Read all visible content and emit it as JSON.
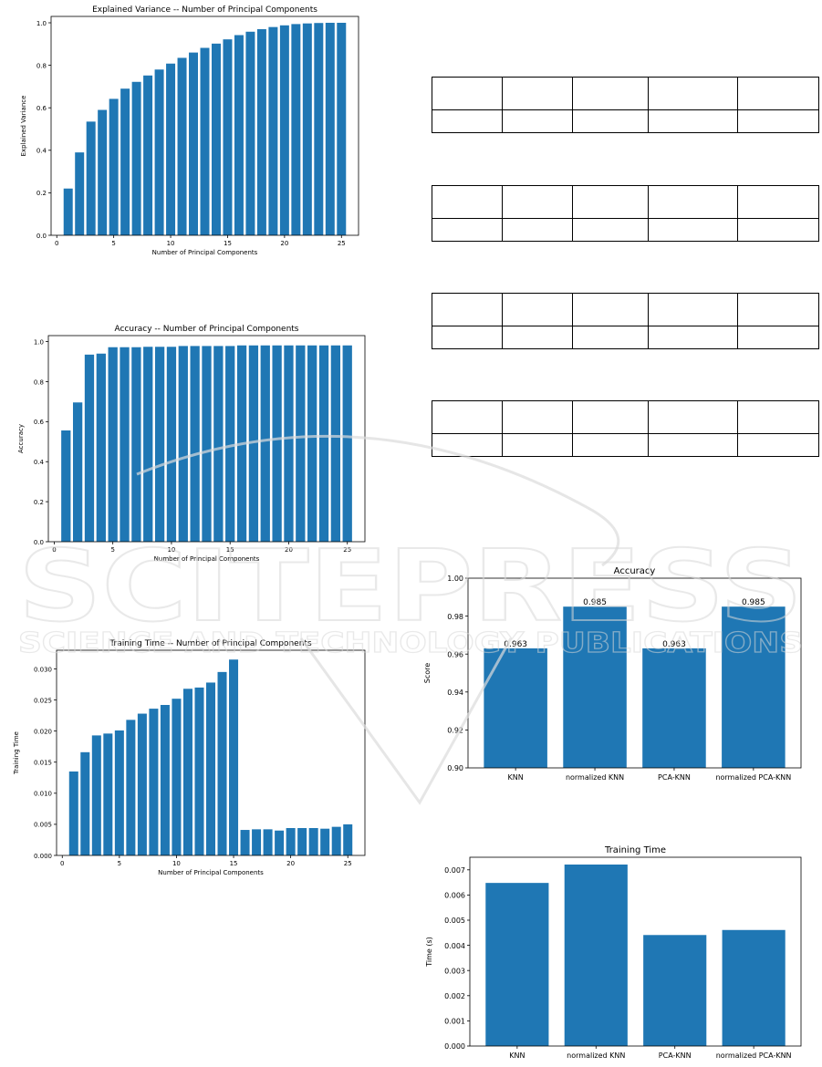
{
  "chart_data": [
    {
      "type": "bar",
      "title": "Explained Variance -- Number of Principal Components",
      "xlabel": "Number of Principal Components",
      "ylabel": "Explained Variance",
      "x": [
        1,
        2,
        3,
        4,
        5,
        6,
        7,
        8,
        9,
        10,
        11,
        12,
        13,
        14,
        15,
        16,
        17,
        18,
        19,
        20,
        21,
        22,
        23,
        24,
        25
      ],
      "values": [
        0.22,
        0.39,
        0.535,
        0.59,
        0.642,
        0.69,
        0.722,
        0.752,
        0.78,
        0.808,
        0.835,
        0.86,
        0.882,
        0.902,
        0.922,
        0.942,
        0.958,
        0.97,
        0.98,
        0.988,
        0.994,
        0.997,
        0.999,
        1.0,
        1.0
      ],
      "xlim": [
        -0.5,
        26.5
      ],
      "ylim": [
        0,
        1.03
      ],
      "xticks": [
        0,
        5,
        10,
        15,
        20,
        25
      ],
      "yticks": [
        0.0,
        0.2,
        0.4,
        0.6,
        0.8,
        1.0
      ],
      "color": "#1f77b4"
    },
    {
      "type": "bar",
      "title": "Accuracy -- Number of Principal Components",
      "xlabel": "Number of Principal Components",
      "ylabel": "Accuracy",
      "x": [
        1,
        2,
        3,
        4,
        5,
        6,
        7,
        8,
        9,
        10,
        11,
        12,
        13,
        14,
        15,
        16,
        17,
        18,
        19,
        20,
        21,
        22,
        23,
        24,
        25
      ],
      "values": [
        0.556,
        0.696,
        0.935,
        0.94,
        0.972,
        0.972,
        0.972,
        0.974,
        0.974,
        0.974,
        0.978,
        0.978,
        0.978,
        0.978,
        0.978,
        0.981,
        0.981,
        0.981,
        0.981,
        0.981,
        0.981,
        0.981,
        0.981,
        0.981,
        0.981
      ],
      "xlim": [
        -0.5,
        26.5
      ],
      "ylim": [
        0,
        1.03
      ],
      "xticks": [
        0,
        5,
        10,
        15,
        20,
        25
      ],
      "yticks": [
        0.0,
        0.2,
        0.4,
        0.6,
        0.8,
        1.0
      ],
      "color": "#1f77b4"
    },
    {
      "type": "bar",
      "title": "Training Time -- Number of Principal Components",
      "xlabel": "Number of Principal Components",
      "ylabel": "Training Time",
      "x": [
        1,
        2,
        3,
        4,
        5,
        6,
        7,
        8,
        9,
        10,
        11,
        12,
        13,
        14,
        15,
        16,
        17,
        18,
        19,
        20,
        21,
        22,
        23,
        24,
        25
      ],
      "values": [
        0.0135,
        0.0166,
        0.0193,
        0.0196,
        0.0201,
        0.0218,
        0.0228,
        0.0236,
        0.0242,
        0.0252,
        0.0268,
        0.027,
        0.0278,
        0.0295,
        0.0315,
        0.0041,
        0.0042,
        0.0042,
        0.004,
        0.0044,
        0.0044,
        0.0044,
        0.0043,
        0.0046,
        0.005
      ],
      "xlim": [
        -0.5,
        26.5
      ],
      "ylim": [
        0,
        0.033
      ],
      "xticks": [
        0,
        5,
        10,
        15,
        20,
        25
      ],
      "yticks": [
        0.0,
        0.005,
        0.01,
        0.015,
        0.02,
        0.025,
        0.03
      ],
      "ytick_labels": [
        "0.000",
        "0.005",
        "0.010",
        "0.015",
        "0.020",
        "0.025",
        "0.030"
      ],
      "color": "#1f77b4"
    },
    {
      "type": "bar",
      "title": "Accuracy",
      "xlabel": "",
      "ylabel": "Score",
      "categories": [
        "KNN",
        "normalized KNN",
        "PCA-KNN",
        "normalized PCA-KNN"
      ],
      "values": [
        0.963,
        0.985,
        0.963,
        0.985
      ],
      "data_labels": [
        "0.963",
        "0.985",
        "0.963",
        "0.985"
      ],
      "ylim": [
        0.9,
        1.0
      ],
      "yticks": [
        0.9,
        0.92,
        0.94,
        0.96,
        0.98,
        1.0
      ],
      "ytick_labels": [
        "0.90",
        "0.92",
        "0.94",
        "0.96",
        "0.98",
        "1.00"
      ],
      "color": "#1f77b4"
    },
    {
      "type": "bar",
      "title": "Training Time",
      "xlabel": "",
      "ylabel": "Time (s)",
      "categories": [
        "KNN",
        "normalized KNN",
        "PCA-KNN",
        "normalized PCA-KNN"
      ],
      "values": [
        0.00648,
        0.00721,
        0.00441,
        0.00461
      ],
      "ylim": [
        0,
        0.0075
      ],
      "yticks": [
        0,
        0.001,
        0.002,
        0.003,
        0.004,
        0.005,
        0.006,
        0.007
      ],
      "ytick_labels": [
        "0.000",
        "0.001",
        "0.002",
        "0.003",
        "0.004",
        "0.005",
        "0.006",
        "0.007"
      ],
      "color": "#1f77b4"
    }
  ],
  "tables": [
    {
      "rows": [
        [
          "",
          "",
          "",
          "",
          ""
        ],
        [
          "",
          "",
          "",
          "",
          ""
        ]
      ]
    },
    {
      "rows": [
        [
          "",
          "",
          "",
          "",
          ""
        ],
        [
          "",
          "",
          "",
          "",
          ""
        ]
      ]
    },
    {
      "rows": [
        [
          "",
          "",
          "",
          "",
          ""
        ],
        [
          "",
          "",
          "",
          "",
          ""
        ]
      ]
    },
    {
      "rows": [
        [
          "",
          "",
          "",
          "",
          ""
        ],
        [
          "",
          "",
          "",
          "",
          ""
        ]
      ]
    }
  ],
  "watermark": {
    "line1": "SCITEPRESS",
    "line2": "SCIENCE AND TECHNOLOGY PUBLICATIONS",
    "color": "#c8c8c8"
  }
}
